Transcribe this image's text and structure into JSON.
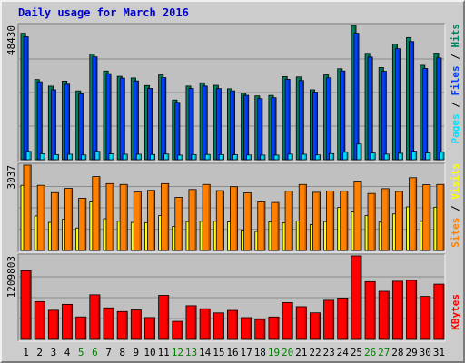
{
  "chart_data": {
    "type": "bar",
    "title": "Daily usage for March 2016",
    "categories": [
      "1",
      "2",
      "3",
      "4",
      "5",
      "6",
      "7",
      "8",
      "9",
      "10",
      "11",
      "12",
      "13",
      "14",
      "15",
      "16",
      "17",
      "18",
      "19",
      "20",
      "21",
      "22",
      "23",
      "24",
      "25",
      "26",
      "27",
      "28",
      "29",
      "30",
      "31"
    ],
    "weekend_days": [
      "5",
      "6",
      "12",
      "13",
      "19",
      "20",
      "26",
      "27"
    ],
    "x_label_color_weekday": "#000000",
    "x_label_color_weekend": "#008000",
    "panels": [
      {
        "id": "pages-files-hits",
        "ymax": 48430,
        "ymax_label": "48430",
        "grid": true,
        "series": [
          {
            "name": "Hits",
            "color": "#008060",
            "values": [
              45590,
              28890,
              26530,
              28340,
              24800,
              38140,
              31980,
              30080,
              29470,
              26740,
              30570,
              21520,
              26540,
              27720,
              26810,
              25560,
              23960,
              23010,
              23180,
              29980,
              29840,
              25200,
              30580,
              32790,
              48430,
              38350,
              33230,
              41670,
              44060,
              34040,
              38410
            ]
          },
          {
            "name": "Files",
            "color": "#0040ff",
            "values": [
              44330,
              28090,
              25210,
              27220,
              23810,
              37080,
              31030,
              29420,
              28410,
              25680,
              29590,
              20670,
              25640,
              26550,
              25640,
              24830,
              23210,
              22000,
              22350,
              28980,
              28550,
              24350,
              29520,
              31990,
              45600,
              37020,
              31890,
              40020,
              42610,
              32900,
              36700
            ]
          },
          {
            "name": "Pages",
            "color": "#00e0ff",
            "values": [
              2990,
              2140,
              1850,
              1960,
              1710,
              3000,
              2090,
              1970,
              1960,
              1860,
              2040,
              1640,
              1850,
              1890,
              1830,
              1770,
              1700,
              1660,
              1660,
              2020,
              1960,
              1720,
              2180,
              2680,
              5640,
              2410,
              2010,
              2320,
              3060,
              2450,
              2690
            ]
          }
        ]
      },
      {
        "id": "sites-visits",
        "ymax": 3037,
        "ymax_label": "3037",
        "grid": true,
        "series": [
          {
            "name": "Visits",
            "color": "#ffff00",
            "values": [
              2320,
              1230,
              1000,
              1110,
              800,
              1730,
              1130,
              1040,
              1000,
              990,
              1240,
              860,
              1030,
              1040,
              1040,
              1020,
              730,
              680,
              1020,
              990,
              1050,
              920,
              1030,
              1530,
              1370,
              1240,
              1010,
              1300,
              1550,
              1040,
              1540
            ]
          },
          {
            "name": "Sites",
            "color": "#ff8000",
            "values": [
              3037,
              2320,
              2060,
              2210,
              1860,
              2630,
              2380,
              2350,
              2080,
              2140,
              2380,
              1890,
              2170,
              2350,
              2130,
              2270,
              2050,
              1730,
              1710,
              2110,
              2350,
              2070,
              2120,
              2110,
              2470,
              2030,
              2200,
              2100,
              2590,
              2340,
              2350
            ]
          }
        ]
      },
      {
        "id": "kbytes",
        "ymax": 1209803,
        "ymax_label": "1209803",
        "grid": true,
        "series": [
          {
            "name": "KBytes",
            "color": "#ff0000",
            "values": [
              995000,
              548000,
              423000,
              508000,
              326000,
              646000,
              457000,
              404000,
              427000,
              317000,
              638000,
              262000,
              488000,
              444000,
              384000,
              420000,
              316000,
              288000,
              325000,
              534000,
              474000,
              385000,
              567000,
              599000,
              1209803,
              837000,
              697000,
              843000,
              856000,
              623000,
              801000
            ]
          }
        ]
      }
    ],
    "legend": {
      "right_top": [
        {
          "text": "Pages",
          "color": "#00e0ff"
        },
        {
          "text": " / ",
          "color": "#000000"
        },
        {
          "text": "Files",
          "color": "#0040ff"
        },
        {
          "text": " / ",
          "color": "#000000"
        },
        {
          "text": "Hits",
          "color": "#008060"
        }
      ],
      "right_middle": [
        {
          "text": "Sites",
          "color": "#ff8000"
        },
        {
          "text": " / ",
          "color": "#000000"
        },
        {
          "text": "Visits",
          "color": "#ffff00"
        }
      ],
      "right_bottom": [
        {
          "text": "KBytes",
          "color": "#ff0000"
        }
      ]
    },
    "colors": {
      "background": "#cccccc",
      "plot_background": "#c0c0c0",
      "title": "#0000cc",
      "grid": "#8c8c8c"
    }
  }
}
